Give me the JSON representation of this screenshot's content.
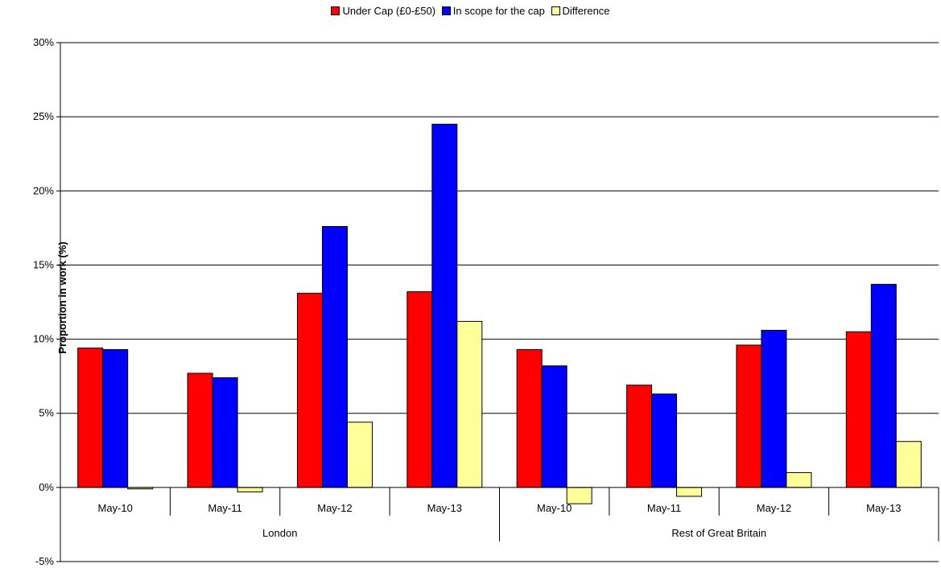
{
  "chart_data": {
    "type": "bar",
    "ylabel": "Proportion in work (%)",
    "ylim": [
      -5,
      30
    ],
    "yticks": [
      "-5%",
      "0%",
      "5%",
      "10%",
      "15%",
      "20%",
      "25%",
      "30%"
    ],
    "grid": true,
    "legend_position": "top-center",
    "groups": [
      "London",
      "Rest of Great Britain"
    ],
    "categories": [
      "May-10",
      "May-11",
      "May-12",
      "May-13",
      "May-10",
      "May-11",
      "May-12",
      "May-13"
    ],
    "series": [
      {
        "name": "Under Cap (£0-£50)",
        "color": "#ff0000",
        "values": [
          9.4,
          7.7,
          13.1,
          13.2,
          9.3,
          6.9,
          9.6,
          10.5
        ]
      },
      {
        "name": "In scope for the cap",
        "color": "#0000ff",
        "values": [
          9.3,
          7.4,
          17.6,
          24.5,
          8.2,
          6.3,
          10.6,
          13.7
        ]
      },
      {
        "name": "Difference",
        "color": "#ffff99",
        "values": [
          -0.1,
          -0.3,
          4.4,
          11.2,
          -1.1,
          -0.6,
          1.0,
          3.1
        ]
      }
    ]
  }
}
